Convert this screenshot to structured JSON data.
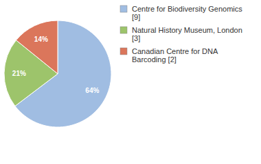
{
  "chart_data": {
    "type": "pie",
    "categories": [
      "Centre for Biodiversity Genomics [9]",
      "Natural History Museum, London [3]",
      "Canadian Centre for DNA Barcoding [2]"
    ],
    "values": [
      64,
      21,
      14
    ],
    "value_labels": [
      "64%",
      "21%",
      "14%"
    ],
    "colors": [
      "#a0bde2",
      "#9dc46b",
      "#db765b"
    ],
    "data_labels": true,
    "legend": "top-right"
  }
}
